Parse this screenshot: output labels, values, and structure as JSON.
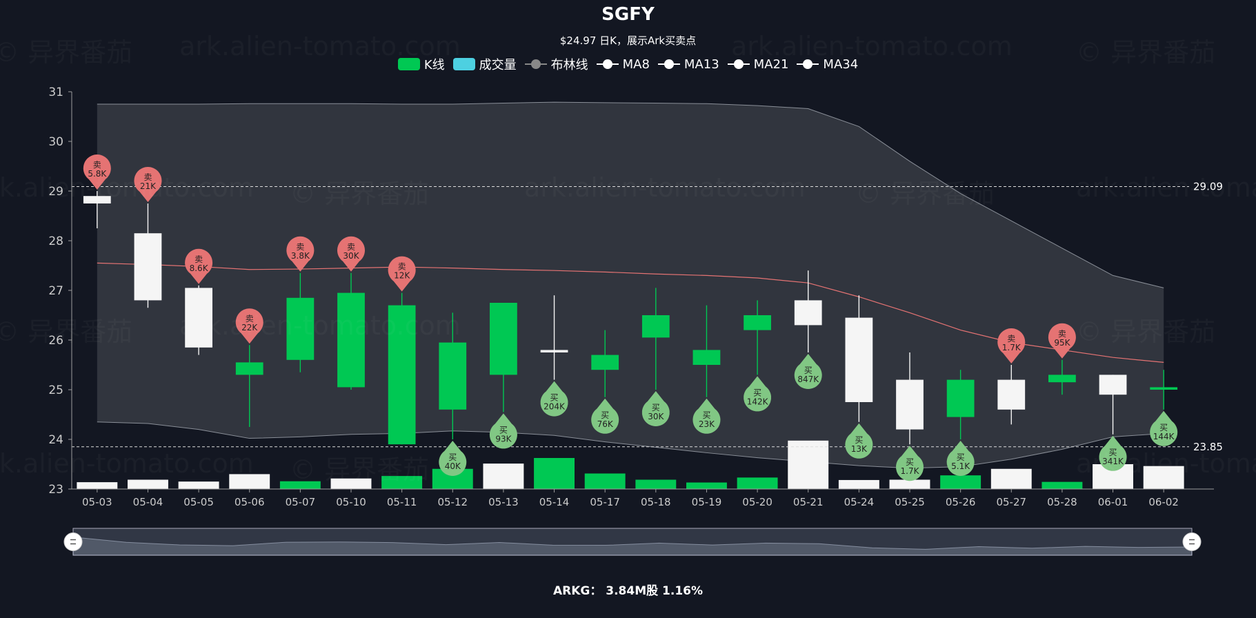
{
  "watermarks": [
    "© 异界番茄",
    "ark.alien-tomato.com"
  ],
  "chart_data": {
    "type": "candlestick",
    "title": "SGFY",
    "subtitle": "$24.97  日K，展示Ark买卖点",
    "legend": [
      {
        "name": "K线",
        "kind": "box",
        "color": "#00c853"
      },
      {
        "name": "成交量",
        "kind": "box",
        "color": "#4dd0e1"
      },
      {
        "name": "布林线",
        "kind": "line",
        "color": "#888888"
      },
      {
        "name": "MA8",
        "kind": "line",
        "color": "#ffffff"
      },
      {
        "name": "MA13",
        "kind": "line",
        "color": "#ffffff"
      },
      {
        "name": "MA21",
        "kind": "line",
        "color": "#ffffff"
      },
      {
        "name": "MA34",
        "kind": "line",
        "color": "#ffffff"
      }
    ],
    "dates": [
      "05-03",
      "05-04",
      "05-05",
      "05-06",
      "05-07",
      "05-10",
      "05-11",
      "05-12",
      "05-13",
      "05-14",
      "05-17",
      "05-18",
      "05-19",
      "05-20",
      "05-21",
      "05-24",
      "05-25",
      "05-26",
      "05-27",
      "05-28",
      "06-01",
      "06-02"
    ],
    "ohlc": [
      [
        28.9,
        28.75,
        28.25,
        29.0
      ],
      [
        28.15,
        26.8,
        26.65,
        28.75
      ],
      [
        27.05,
        25.85,
        25.7,
        27.1
      ],
      [
        25.3,
        25.55,
        24.25,
        25.9
      ],
      [
        25.6,
        26.85,
        25.35,
        27.35
      ],
      [
        25.05,
        26.95,
        25.0,
        27.35
      ],
      [
        23.9,
        26.7,
        23.9,
        26.95
      ],
      [
        24.6,
        25.95,
        24.0,
        26.55
      ],
      [
        25.3,
        26.75,
        24.55,
        26.75
      ],
      [
        25.8,
        25.75,
        25.2,
        26.9
      ],
      [
        25.4,
        25.7,
        24.85,
        26.2
      ],
      [
        26.05,
        26.5,
        25.0,
        27.05
      ],
      [
        25.5,
        25.8,
        24.85,
        26.7
      ],
      [
        26.2,
        26.5,
        25.3,
        26.8
      ],
      [
        26.8,
        26.3,
        25.75,
        27.4
      ],
      [
        26.45,
        24.75,
        24.35,
        26.9
      ],
      [
        25.2,
        24.2,
        23.9,
        25.75
      ],
      [
        24.45,
        25.2,
        24.0,
        25.4
      ],
      [
        25.2,
        24.6,
        24.3,
        25.5
      ],
      [
        25.15,
        25.3,
        24.9,
        25.6
      ],
      [
        25.3,
        24.9,
        24.1,
        25.3
      ],
      [
        25.0,
        25.05,
        24.6,
        25.4
      ]
    ],
    "volume_up": [
      false,
      false,
      false,
      false,
      true,
      false,
      true,
      true,
      false,
      true,
      true,
      true,
      true,
      true,
      false,
      false,
      false,
      true,
      false,
      true,
      false,
      false
    ],
    "volume_rel": [
      0.22,
      0.3,
      0.24,
      0.48,
      0.25,
      0.34,
      0.42,
      0.65,
      0.82,
      1.0,
      0.5,
      0.3,
      0.21,
      0.37,
      1.56,
      0.29,
      0.3,
      0.44,
      0.65,
      0.23,
      0.8,
      0.74
    ],
    "boll_upper": [
      30.75,
      30.75,
      30.75,
      30.76,
      30.76,
      30.76,
      30.75,
      30.75,
      30.77,
      30.79,
      30.78,
      30.77,
      30.76,
      30.72,
      30.66,
      30.3,
      29.6,
      28.95,
      28.4,
      27.85,
      27.3,
      27.05
    ],
    "boll_lower": [
      24.35,
      24.32,
      24.2,
      24.02,
      24.05,
      24.1,
      24.12,
      24.17,
      24.14,
      24.08,
      23.95,
      23.84,
      23.73,
      23.63,
      23.55,
      23.47,
      23.42,
      23.45,
      23.6,
      23.8,
      24.05,
      24.12
    ],
    "boll_mid": [
      27.55,
      27.52,
      27.48,
      27.42,
      27.43,
      27.45,
      27.47,
      27.45,
      27.42,
      27.4,
      27.37,
      27.33,
      27.3,
      27.25,
      27.15,
      26.87,
      26.55,
      26.2,
      25.95,
      25.8,
      25.65,
      25.55
    ],
    "markers": [
      {
        "i": 0,
        "type": "sell",
        "label": "5.8K",
        "at": 29.0
      },
      {
        "i": 1,
        "type": "sell",
        "label": "21K",
        "at": 28.75
      },
      {
        "i": 2,
        "type": "sell",
        "label": "8.6K",
        "at": 27.1
      },
      {
        "i": 3,
        "type": "sell",
        "label": "22K",
        "at": 25.9
      },
      {
        "i": 4,
        "type": "sell",
        "label": "3.8K",
        "at": 27.35
      },
      {
        "i": 5,
        "type": "sell",
        "label": "30K",
        "at": 27.35
      },
      {
        "i": 6,
        "type": "sell",
        "label": "12K",
        "at": 26.95
      },
      {
        "i": 7,
        "type": "buy",
        "label": "40K",
        "at": 24.0
      },
      {
        "i": 8,
        "type": "buy",
        "label": "93K",
        "at": 24.55
      },
      {
        "i": 9,
        "type": "buy",
        "label": "204K",
        "at": 25.2
      },
      {
        "i": 10,
        "type": "buy",
        "label": "76K",
        "at": 24.85
      },
      {
        "i": 11,
        "type": "buy",
        "label": "30K",
        "at": 25.0
      },
      {
        "i": 12,
        "type": "buy",
        "label": "23K",
        "at": 24.85
      },
      {
        "i": 13,
        "type": "buy",
        "label": "142K",
        "at": 25.3
      },
      {
        "i": 14,
        "type": "buy",
        "label": "847K",
        "at": 25.75
      },
      {
        "i": 15,
        "type": "buy",
        "label": "13K",
        "at": 24.35
      },
      {
        "i": 16,
        "type": "buy",
        "label": "1.7K",
        "at": 23.9
      },
      {
        "i": 17,
        "type": "buy",
        "label": "5.1K",
        "at": 24.0
      },
      {
        "i": 18,
        "type": "sell",
        "label": "1.7K",
        "at": 25.5
      },
      {
        "i": 19,
        "type": "sell",
        "label": "95K",
        "at": 25.6
      },
      {
        "i": 20,
        "type": "buy",
        "label": "341K",
        "at": 24.1
      },
      {
        "i": 21,
        "type": "buy",
        "label": "144K",
        "at": 24.6
      }
    ],
    "buy_char": "买",
    "sell_char": "卖",
    "hlines": [
      {
        "value": 29.09,
        "label": "29.09"
      },
      {
        "value": 23.85,
        "label": "23.85"
      }
    ],
    "y_ticks": [
      23,
      24,
      25,
      26,
      27,
      28,
      29,
      30,
      31
    ],
    "y_tick_labels": [
      "23",
      "24",
      "25",
      "26",
      "27",
      "28",
      "29",
      "30",
      "31"
    ],
    "ylim": [
      23,
      31
    ],
    "colors": {
      "up": "#00c853",
      "down": "#f5f5f5",
      "sell": "#e57373",
      "buy": "#81c784",
      "boll": "#9e9e9e",
      "mid": "#e57373",
      "axis": "#9e9e9e",
      "grid": "#ffffff"
    }
  },
  "footer": "ARKG：  3.84M股 1.16%"
}
